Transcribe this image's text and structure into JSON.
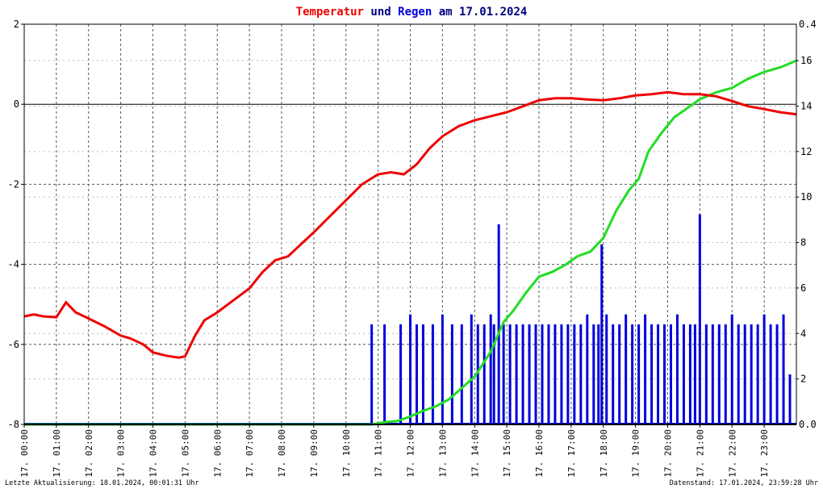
{
  "title": {
    "part1": "Temperatur",
    "part2": " und ",
    "part3": "Regen",
    "part4": " am 17.01.2024"
  },
  "colors": {
    "temperature": "#ee0000",
    "rain": "#0000dd",
    "rain_cumulative": "#22dd22",
    "title_dark": "#000080",
    "grid": "#555555"
  },
  "footer": {
    "left": "Letzte Aktualisierung: 18.01.2024, 00:01:31 Uhr",
    "right": "Datenstand: 17.01.2024, 23:59:28 Uhr"
  },
  "chart_data": {
    "type": "line",
    "x_tick_labels": [
      "17. 00:00",
      "17. 01:00",
      "17. 02:00",
      "17. 03:00",
      "17. 04:00",
      "17. 05:00",
      "17. 06:00",
      "17. 07:00",
      "17. 08:00",
      "17. 09:00",
      "17. 10:00",
      "17. 11:00",
      "17. 12:00",
      "17. 13:00",
      "17. 14:00",
      "17. 15:00",
      "17. 16:00",
      "17. 17:00",
      "17. 18:00",
      "17. 19:00",
      "17. 20:00",
      "17. 21:00",
      "17. 22:00",
      "17. 23:00"
    ],
    "xlim_hours": [
      0,
      24
    ],
    "y_left": {
      "ylim": [
        -8,
        2
      ],
      "ticks": [
        "-8",
        "-6",
        "-4",
        "-2",
        "0",
        "2"
      ]
    },
    "y_right_rain_rate": {
      "ylim": [
        0,
        0.4
      ],
      "ticks": [
        "0.0",
        "0.4"
      ]
    },
    "y_right_rain_sum": {
      "ylim": [
        0,
        17.6
      ],
      "ticks": [
        "2",
        "4",
        "6",
        "8",
        "10",
        "12",
        "14",
        "16"
      ]
    },
    "temperature_series": {
      "x_hours": [
        0,
        0.3,
        0.6,
        1,
        1.3,
        1.6,
        2,
        2.5,
        3,
        3.3,
        3.7,
        4,
        4.4,
        4.8,
        5,
        5.3,
        5.6,
        6,
        6.5,
        7,
        7.4,
        7.8,
        8.2,
        8.6,
        9,
        9.5,
        10,
        10.5,
        11,
        11.4,
        11.8,
        12.2,
        12.6,
        13,
        13.5,
        14,
        14.5,
        15,
        15.5,
        16,
        16.5,
        17,
        17.5,
        18,
        18.5,
        19,
        19.5,
        20,
        20.5,
        21,
        21.5,
        22,
        22.5,
        23,
        23.5,
        24
      ],
      "values": [
        -5.3,
        -5.25,
        -5.3,
        -5.32,
        -4.95,
        -5.2,
        -5.35,
        -5.55,
        -5.78,
        -5.85,
        -6.0,
        -6.2,
        -6.28,
        -6.33,
        -6.3,
        -5.8,
        -5.4,
        -5.2,
        -4.9,
        -4.6,
        -4.2,
        -3.9,
        -3.8,
        -3.5,
        -3.2,
        -2.8,
        -2.4,
        -2.0,
        -1.75,
        -1.7,
        -1.75,
        -1.5,
        -1.1,
        -0.8,
        -0.55,
        -0.4,
        -0.3,
        -0.2,
        -0.05,
        0.1,
        0.15,
        0.15,
        0.12,
        0.1,
        0.15,
        0.22,
        0.25,
        0.3,
        0.25,
        0.25,
        0.2,
        0.08,
        -0.05,
        -0.12,
        -0.2,
        -0.25
      ]
    },
    "rain_cumulative_series": {
      "x_hours": [
        0,
        10.8,
        11.2,
        11.6,
        12.0,
        12.4,
        12.8,
        13.2,
        13.6,
        14.0,
        14.5,
        14.9,
        15.2,
        15.6,
        16.0,
        16.4,
        16.8,
        17.2,
        17.6,
        18.0,
        18.4,
        18.8,
        19.1,
        19.4,
        19.8,
        20.2,
        20.6,
        21.0,
        21.5,
        22.0,
        22.5,
        23.0,
        23.5,
        24
      ],
      "values": [
        0,
        0,
        0.1,
        0.15,
        0.35,
        0.6,
        0.8,
        1.1,
        1.6,
        2.1,
        3.2,
        4.5,
        5.0,
        5.8,
        6.5,
        6.7,
        7.0,
        7.4,
        7.6,
        8.2,
        9.4,
        10.3,
        10.8,
        12.0,
        12.8,
        13.5,
        13.9,
        14.3,
        14.6,
        14.8,
        15.2,
        15.5,
        15.7,
        16.0
      ]
    },
    "rain_rate_series": {
      "x_hours": [
        10.8,
        11.2,
        11.7,
        12.0,
        12.2,
        12.4,
        12.7,
        13.0,
        13.3,
        13.6,
        13.9,
        14.1,
        14.3,
        14.5,
        14.6,
        14.75,
        14.9,
        15.1,
        15.3,
        15.5,
        15.7,
        15.9,
        16.1,
        16.3,
        16.5,
        16.7,
        16.9,
        17.1,
        17.3,
        17.5,
        17.7,
        17.85,
        17.95,
        18.1,
        18.3,
        18.5,
        18.7,
        18.9,
        19.1,
        19.3,
        19.5,
        19.7,
        19.9,
        20.1,
        20.3,
        20.5,
        20.7,
        20.85,
        21.0,
        21.2,
        21.4,
        21.6,
        21.8,
        22.0,
        22.2,
        22.4,
        22.6,
        22.8,
        23.0,
        23.2,
        23.4,
        23.6,
        23.8
      ],
      "values": [
        0.1,
        0.1,
        0.1,
        0.11,
        0.1,
        0.1,
        0.1,
        0.11,
        0.1,
        0.1,
        0.11,
        0.1,
        0.1,
        0.11,
        0.1,
        0.2,
        0.1,
        0.1,
        0.1,
        0.1,
        0.1,
        0.1,
        0.1,
        0.1,
        0.1,
        0.1,
        0.1,
        0.1,
        0.1,
        0.11,
        0.1,
        0.1,
        0.18,
        0.11,
        0.1,
        0.1,
        0.11,
        0.1,
        0.1,
        0.11,
        0.1,
        0.1,
        0.1,
        0.1,
        0.11,
        0.1,
        0.1,
        0.1,
        0.21,
        0.1,
        0.1,
        0.1,
        0.1,
        0.11,
        0.1,
        0.1,
        0.1,
        0.1,
        0.11,
        0.1,
        0.1,
        0.11,
        0.05
      ]
    }
  }
}
